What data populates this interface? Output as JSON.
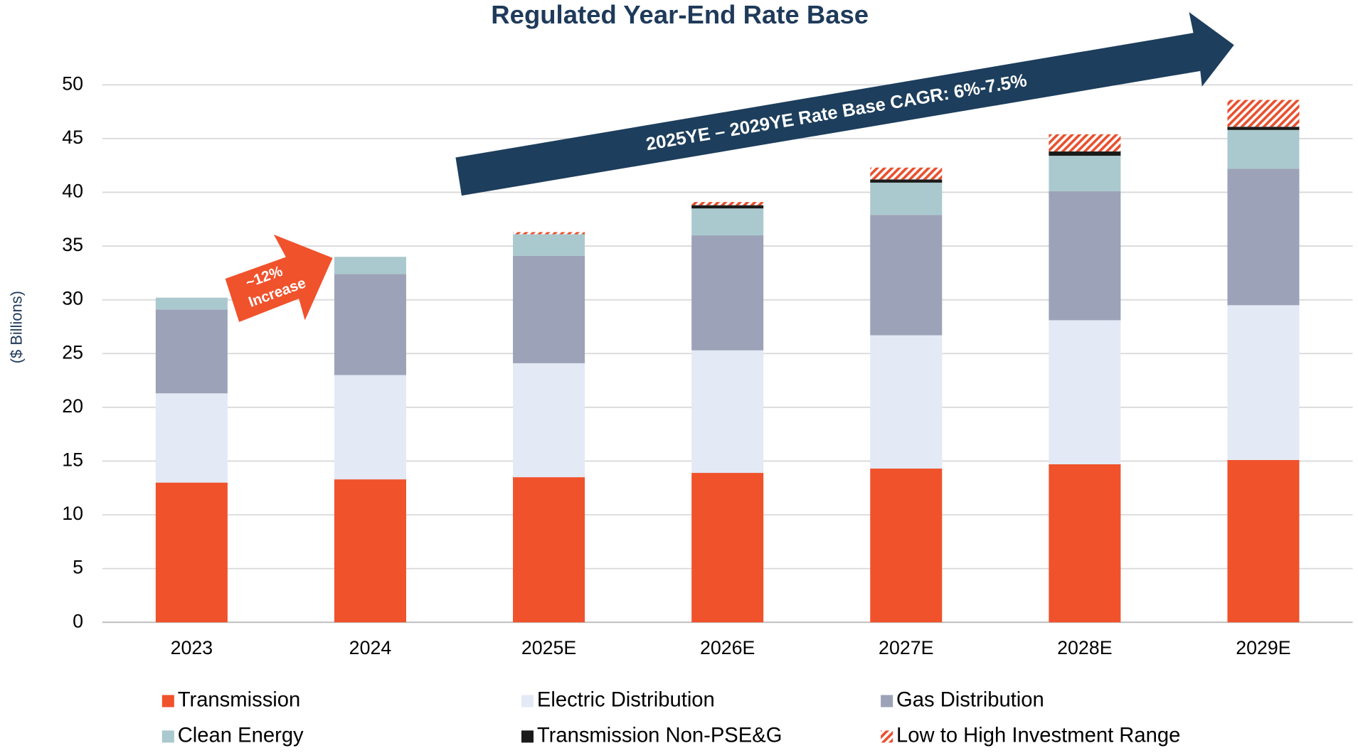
{
  "chart_data": {
    "type": "stacked_bar",
    "title": "Regulated Year-End Rate Base",
    "y_label": "($ Billions)",
    "categories": [
      "2023",
      "2024",
      "2025E",
      "2026E",
      "2027E",
      "2028E",
      "2029E"
    ],
    "series": [
      {
        "name": "Transmission",
        "color": "#f0522c",
        "values": [
          13.0,
          13.3,
          13.5,
          13.9,
          14.3,
          14.7,
          15.1
        ]
      },
      {
        "name": "Electric Distribution",
        "color": "#e3e9f5",
        "values": [
          8.3,
          9.7,
          10.6,
          11.4,
          12.4,
          13.4,
          14.4
        ]
      },
      {
        "name": "Gas Distribution",
        "color": "#9ca3b8",
        "values": [
          7.8,
          9.4,
          10.0,
          10.7,
          11.2,
          12.0,
          12.7
        ]
      },
      {
        "name": "Clean Energy",
        "color": "#a9c9ce",
        "values": [
          1.1,
          1.6,
          2.0,
          2.5,
          3.0,
          3.3,
          3.6
        ]
      },
      {
        "name": "Transmission Non-PSE&G",
        "color": "#1a1a1a",
        "values": [
          null,
          null,
          null,
          0.3,
          0.3,
          0.4,
          0.3
        ]
      },
      {
        "name": "Low to High Investment Range",
        "color": "#e8502e",
        "pattern": "hatch",
        "values": [
          null,
          null,
          0.2,
          0.3,
          1.1,
          1.6,
          2.5
        ]
      }
    ],
    "ylim": [
      0,
      50
    ],
    "yticks": [
      0,
      5,
      10,
      15,
      20,
      25,
      30,
      35,
      40,
      45,
      50
    ],
    "grid": true,
    "annotations": [
      {
        "text": "2025YE – 2029YE Rate Base CAGR: 6%-7.5%"
      },
      {
        "text": [
          "~12%",
          "Increase"
        ]
      }
    ]
  }
}
